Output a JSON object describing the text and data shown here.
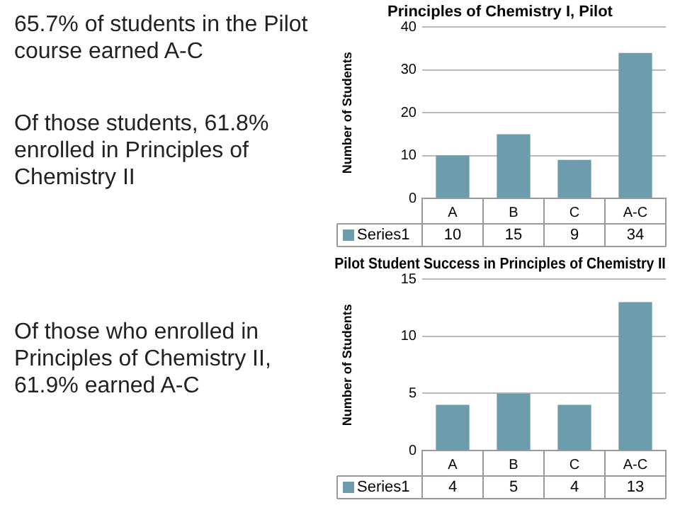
{
  "chart_data": [
    {
      "type": "other",
      "annotations": [
        "65.7% of students in the Pilot course earned A-C",
        "Of those students, 61.8% enrolled in Principles of Chemistry II",
        "Of those who enrolled in Principles of Chemistry II, 61.9% earned A-C"
      ]
    },
    {
      "type": "bar",
      "title": "Principles of Chemistry I, Pilot",
      "ylabel": "Number of Students",
      "categories": [
        "A",
        "B",
        "C",
        "A-C"
      ],
      "series": [
        {
          "name": "Series1",
          "color": "#6d9cac",
          "values": [
            10,
            15,
            9,
            34
          ]
        }
      ],
      "ylim": [
        0,
        40
      ],
      "yticks": [
        0,
        10,
        20,
        30,
        40
      ],
      "grid": "y",
      "data_labels": true
    },
    {
      "type": "bar",
      "title": "Pilot Student Success in Principles of Chemistry II",
      "ylabel": "Number of Students",
      "categories": [
        "A",
        "B",
        "C",
        "A-C"
      ],
      "series": [
        {
          "name": "Series1",
          "color": "#6d9cac",
          "values": [
            4,
            5,
            4,
            13
          ]
        }
      ],
      "ylim": [
        0,
        15
      ],
      "yticks": [
        0,
        5,
        10,
        15
      ],
      "grid": "y",
      "data_labels": true
    }
  ]
}
